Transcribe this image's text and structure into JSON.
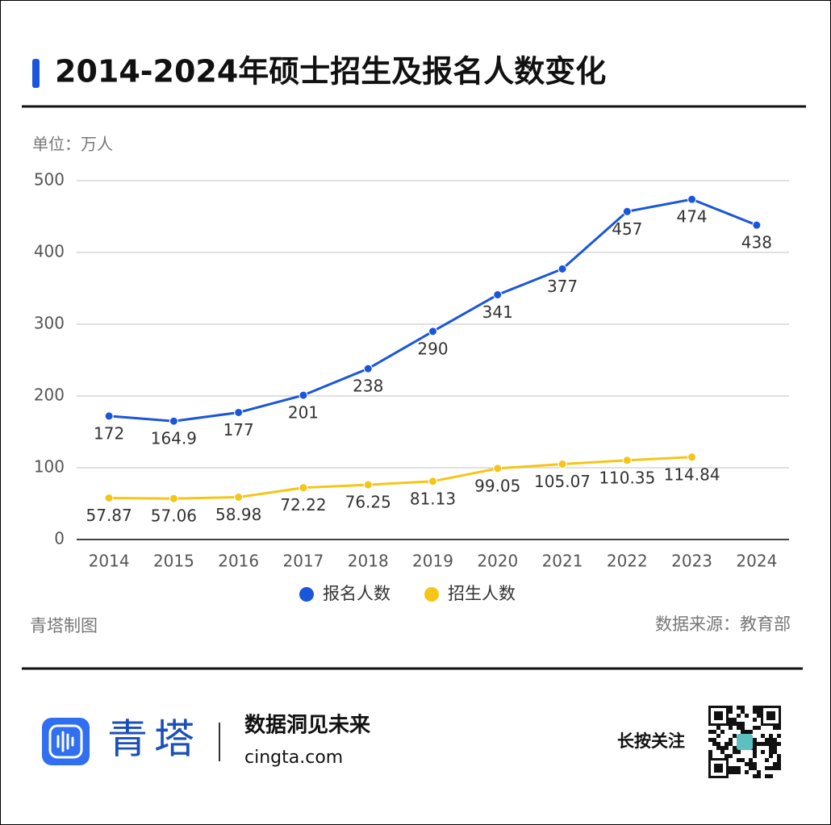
{
  "chart_data": {
    "type": "line",
    "title": "2014-2024年硕士招生及报名人数变化",
    "unit": "单位：万人",
    "credit": "青塔制图",
    "source": "数据来源：教育部",
    "categories": [
      "2014",
      "2015",
      "2016",
      "2017",
      "2018",
      "2019",
      "2020",
      "2021",
      "2022",
      "2023",
      "2024"
    ],
    "series": [
      {
        "name": "报名人数",
        "color": "#1a56db",
        "values": [
          172,
          164.9,
          177,
          201,
          238,
          290,
          341,
          377,
          457,
          474,
          438
        ]
      },
      {
        "name": "招生人数",
        "color": "#f5c518",
        "values": [
          57.87,
          57.06,
          58.98,
          72.22,
          76.25,
          81.13,
          99.05,
          105.07,
          110.35,
          114.84,
          null
        ]
      }
    ],
    "ylim": [
      0,
      500
    ],
    "yticks": [
      0,
      100,
      200,
      300,
      400,
      500
    ],
    "grid": true,
    "legend": "bottom"
  },
  "footer": {
    "brand": "青塔",
    "slogan": "数据洞见未来",
    "url": "cingta.com",
    "follow": "长按关注"
  }
}
